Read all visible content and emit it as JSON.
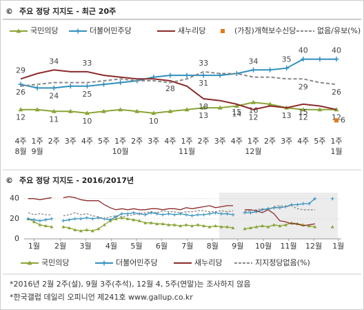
{
  "chart_data": [
    {
      "type": "line",
      "title": "주요 정당 지지도 - 최근 20주",
      "categories": [
        "4주",
        "1주",
        "2주",
        "3주",
        "4주",
        "5주",
        "1주",
        "2주",
        "3주",
        "4주",
        "1주",
        "2주",
        "3주",
        "4주",
        "1주",
        "2주",
        "3주",
        "4주",
        "5주",
        "1주"
      ],
      "month_labels": [
        "8월",
        "9월",
        null,
        null,
        null,
        null,
        "10월",
        null,
        null,
        null,
        "11월",
        null,
        null,
        null,
        "12월",
        null,
        null,
        null,
        null,
        "1월"
      ],
      "ylim": [
        0,
        46
      ],
      "series": [
        {
          "name": "국민의당",
          "color": "#8aa436",
          "marker": "triangle",
          "values": [
            12,
            12,
            11,
            11,
            10,
            11,
            12,
            11,
            10,
            11,
            12,
            13,
            13,
            14,
            16,
            15,
            13,
            12,
            12,
            12
          ],
          "value_labels": [
            "12",
            null,
            "11",
            null,
            "10",
            null,
            null,
            null,
            "10",
            null,
            null,
            "13",
            null,
            "14",
            "16",
            null,
            null,
            "12",
            null,
            null
          ]
        },
        {
          "name": "더불어민주당",
          "color": "#2f8fbf",
          "marker": "plus",
          "values": [
            26,
            24,
            24,
            25,
            25,
            26,
            27,
            28,
            30,
            31,
            31,
            31,
            31,
            32,
            34,
            34,
            35,
            40,
            40,
            40
          ],
          "value_labels": [
            "26",
            null,
            "24",
            null,
            "25",
            null,
            null,
            null,
            null,
            null,
            null,
            "31",
            null,
            null,
            "34",
            null,
            "35",
            "40",
            null,
            "40"
          ]
        },
        {
          "name": "새누리당",
          "color": "#8b2a2a",
          "marker": "none",
          "values": [
            29,
            32,
            34,
            33,
            33,
            31,
            30,
            29,
            29,
            28,
            25,
            18,
            17,
            15,
            12,
            14,
            13,
            15,
            14,
            12
          ],
          "value_labels": [
            "29",
            null,
            "34",
            null,
            "33",
            null,
            null,
            null,
            null,
            "28",
            null,
            "18",
            null,
            "15",
            "12",
            null,
            "13",
            "15",
            null,
            "12"
          ]
        },
        {
          "name": "(가칭)개혁보수신당",
          "color": "#e07b1a",
          "marker": "square",
          "values": [
            null,
            null,
            null,
            null,
            null,
            null,
            null,
            null,
            null,
            null,
            null,
            null,
            null,
            null,
            null,
            null,
            null,
            null,
            null,
            6
          ],
          "value_labels": [
            null,
            null,
            null,
            null,
            null,
            null,
            null,
            null,
            null,
            null,
            null,
            null,
            null,
            null,
            null,
            null,
            null,
            null,
            null,
            "6"
          ]
        },
        {
          "name": "없음/유보(%)",
          "color": "#888888",
          "marker": "dashed",
          "values": [
            25,
            26,
            27,
            27,
            27,
            28,
            29,
            28,
            28,
            27,
            29,
            33,
            32,
            32,
            30,
            30,
            29,
            29,
            27,
            26
          ],
          "value_labels": [
            null,
            null,
            null,
            null,
            null,
            null,
            null,
            null,
            null,
            null,
            null,
            "33",
            null,
            null,
            null,
            null,
            null,
            "29",
            null,
            "26"
          ]
        }
      ]
    },
    {
      "type": "line",
      "title": "주요 정당 지지도 - 2016/2017년",
      "x": [
        1,
        2,
        3,
        4,
        5,
        6,
        7,
        8,
        9,
        10,
        11,
        12,
        13,
        14,
        15,
        16,
        17,
        18,
        19,
        20,
        21,
        22,
        23,
        24,
        25,
        26,
        27,
        28,
        29,
        30,
        31,
        32,
        33,
        34,
        35,
        36,
        37,
        38,
        39,
        40,
        41,
        42,
        43,
        44,
        45,
        46,
        47,
        48,
        49,
        50,
        51,
        52,
        53
      ],
      "xlim": [
        0.3,
        54.5
      ],
      "xticks": [
        {
          "value": 2,
          "label": "1월"
        },
        {
          "value": 6.5,
          "label": "2월"
        },
        {
          "value": 10.8,
          "label": "3월"
        },
        {
          "value": 15.2,
          "label": "4월"
        },
        {
          "value": 19.5,
          "label": "5월"
        },
        {
          "value": 23.8,
          "label": "6월"
        },
        {
          "value": 28.2,
          "label": "7월"
        },
        {
          "value": 32.5,
          "label": "8월"
        },
        {
          "value": 36.8,
          "label": "9월"
        },
        {
          "value": 41.2,
          "label": "10월"
        },
        {
          "value": 45.5,
          "label": "11월"
        },
        {
          "value": 49.8,
          "label": "12월"
        },
        {
          "value": 54,
          "label": "1월"
        }
      ],
      "ylim": [
        0,
        46
      ],
      "yticks": [
        0,
        20,
        40
      ],
      "grid": true,
      "series": [
        {
          "name": "국민의당",
          "color": "#8aa436",
          "marker": "triangle",
          "values": [
            20,
            17,
            14,
            13,
            12,
            null,
            12,
            11,
            9,
            8,
            9,
            8,
            10,
            14,
            18,
            20,
            21,
            20,
            19,
            18,
            16,
            16,
            15,
            15,
            14,
            14,
            13,
            14,
            13,
            14,
            13,
            12,
            13,
            12,
            12,
            11,
            null,
            10,
            11,
            12,
            13,
            12,
            14,
            13,
            14,
            16,
            15,
            14,
            13,
            12,
            null,
            null,
            12
          ]
        },
        {
          "name": "더불어민주당",
          "color": "#2f8fbf",
          "marker": "plus",
          "values": [
            20,
            19,
            18,
            19,
            20,
            null,
            18,
            19,
            20,
            20,
            21,
            20,
            21,
            20,
            19,
            22,
            25,
            25,
            26,
            25,
            24,
            26,
            25,
            24,
            25,
            24,
            25,
            24,
            23,
            24,
            24,
            25,
            26,
            25,
            25,
            24,
            null,
            26,
            26,
            27,
            29,
            30,
            31,
            31,
            32,
            34,
            34,
            35,
            35,
            40,
            null,
            null,
            40
          ]
        },
        {
          "name": "새누리당",
          "color": "#8b2a2a",
          "marker": "none",
          "values": [
            40,
            40,
            39,
            40,
            41,
            null,
            41,
            42,
            41,
            39,
            38,
            38,
            38,
            34,
            31,
            29,
            30,
            29,
            30,
            29,
            29,
            30,
            30,
            29,
            30,
            30,
            29,
            31,
            30,
            31,
            32,
            33,
            31,
            32,
            33,
            33,
            null,
            29,
            29,
            28,
            26,
            29,
            25,
            18,
            17,
            15,
            15,
            13,
            14,
            15,
            null,
            null,
            12
          ]
        },
        {
          "name": "지지정당없음(%)",
          "color": "#888888",
          "marker": "dashed",
          "values": [
            26,
            24,
            25,
            24,
            24,
            null,
            23,
            24,
            26,
            24,
            25,
            23,
            22,
            20,
            22,
            23,
            22,
            23,
            24,
            25,
            26,
            27,
            26,
            28,
            27,
            27,
            26,
            27,
            27,
            28,
            28,
            27,
            27,
            28,
            27,
            28,
            null,
            27,
            28,
            29,
            30,
            28,
            32,
            33,
            32,
            33,
            30,
            29,
            29,
            29,
            null,
            null,
            26
          ]
        }
      ]
    },
    {
      "notes": [
        "*2016년 2월 2주(설), 9월 3주(추석), 12월 4, 5주(연말)는 조사하지 않음",
        "*한국갤럽 데일리 오피니언 제241호 www.gallup.co.kr"
      ]
    }
  ]
}
